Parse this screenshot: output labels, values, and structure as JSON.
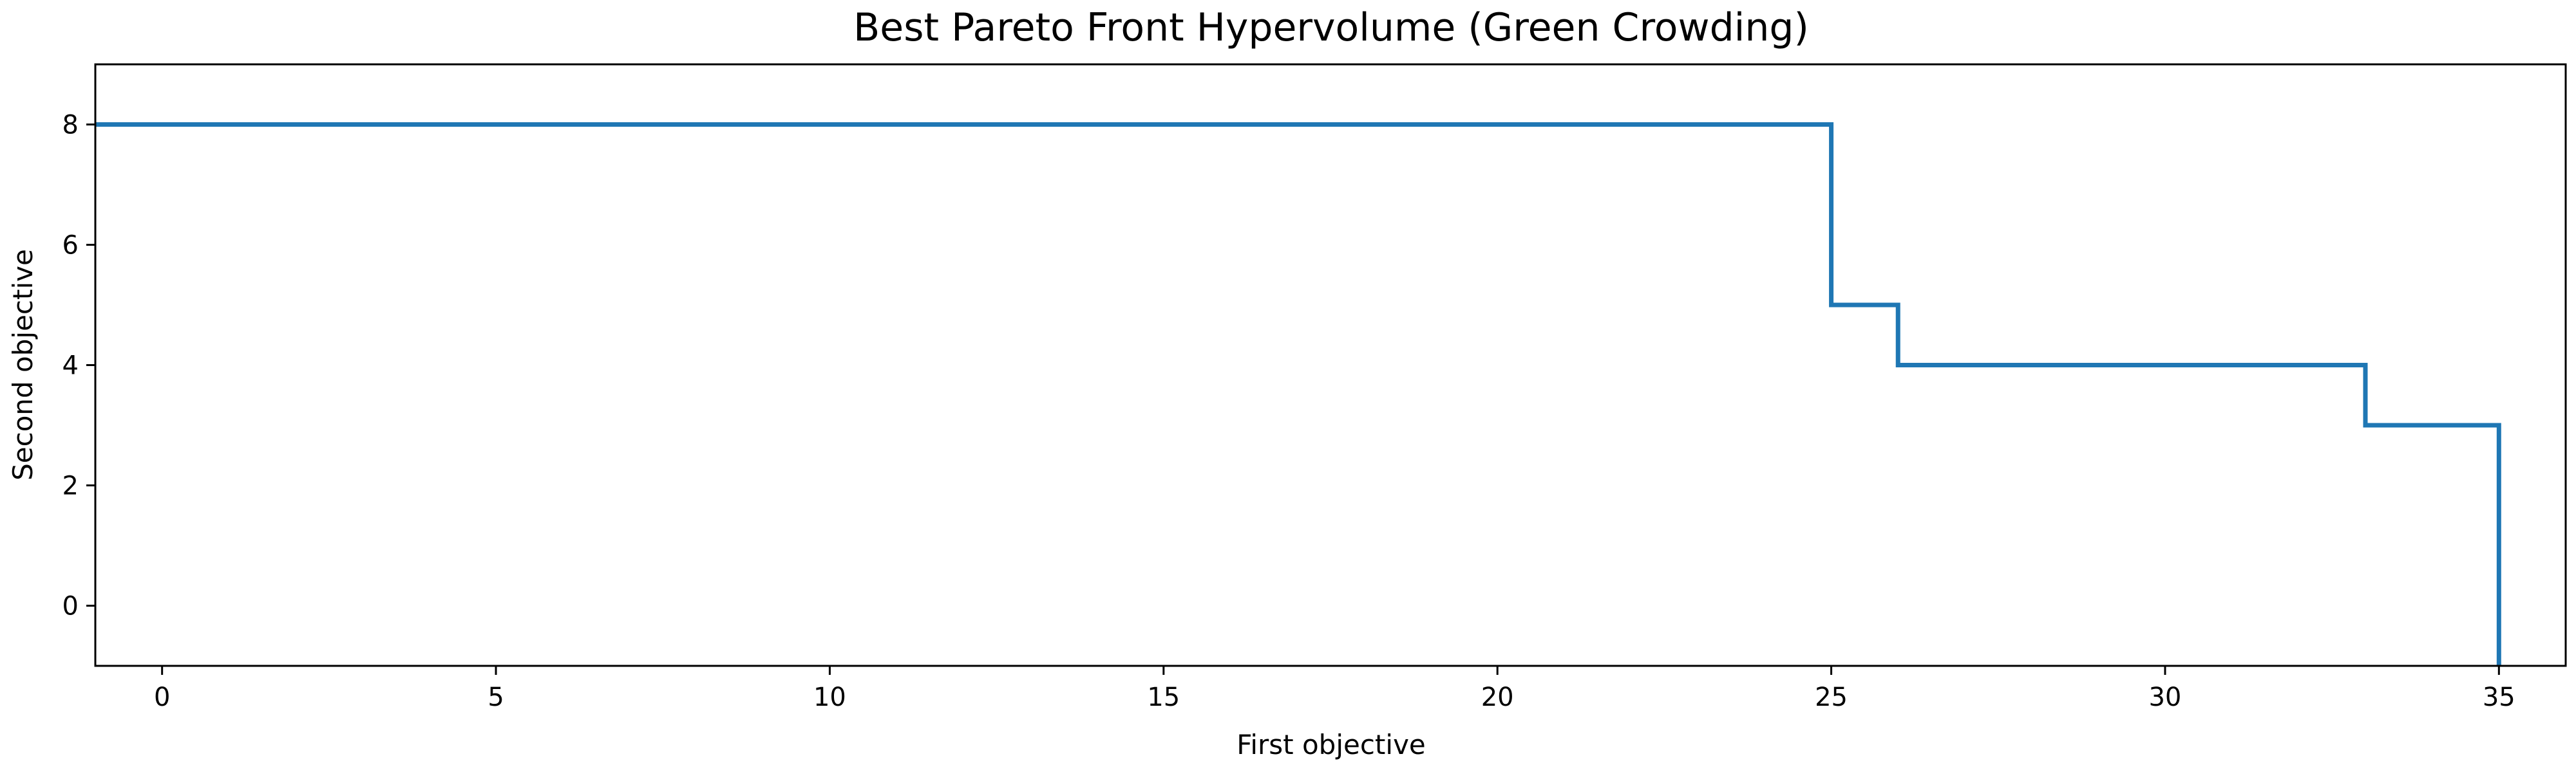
{
  "chart_data": {
    "type": "line",
    "drawstyle": "steps-post",
    "title": "Best Pareto Front Hypervolume (Green Crowding)",
    "xlabel": "First objective",
    "ylabel": "Second objective",
    "xlim": [
      -1,
      36
    ],
    "ylim": [
      -1,
      9
    ],
    "xticks": [
      0,
      5,
      10,
      15,
      20,
      25,
      30,
      35
    ],
    "yticks": [
      0,
      2,
      4,
      6,
      8
    ],
    "grid": false,
    "legend": "none",
    "series": [
      {
        "color": "#1f77b4",
        "x": [
          -1,
          25,
          26,
          33,
          35,
          35
        ],
        "y": [
          8,
          5,
          4,
          3,
          -1,
          -1
        ]
      }
    ]
  }
}
